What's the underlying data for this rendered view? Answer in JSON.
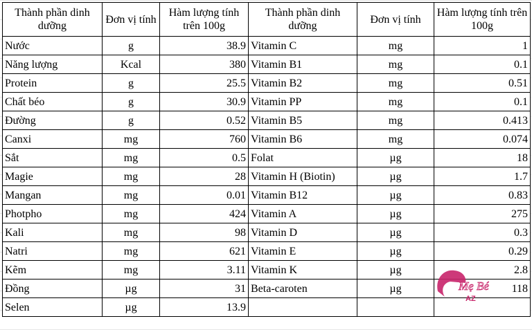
{
  "headers": [
    "Thành phần dinh dưỡng",
    "Đơn vị tính",
    "Hàm lượng tính trên 100g",
    "Thành phần dinh dưỡng",
    "Đơn vị tính",
    "Hàm lượng tính trên 100g"
  ],
  "rows": [
    [
      [
        "Nước",
        "g",
        "38.9"
      ],
      [
        "Vitamin C",
        "mg",
        "1"
      ]
    ],
    [
      [
        "Năng lượng",
        "Kcal",
        "380"
      ],
      [
        "Vitamin B1",
        "mg",
        "0.1"
      ]
    ],
    [
      [
        "Protein",
        "g",
        "25.5"
      ],
      [
        "Vitamin B2",
        "mg",
        "0.51"
      ]
    ],
    [
      [
        "Chất béo",
        "g",
        "30.9"
      ],
      [
        "Vitamin PP",
        "mg",
        "0.1"
      ]
    ],
    [
      [
        "Đường",
        "g",
        "0.52"
      ],
      [
        "Vitamin B5",
        "mg",
        "0.413"
      ]
    ],
    [
      [
        "Canxi",
        "mg",
        "760"
      ],
      [
        "Vitamin B6",
        "mg",
        "0.074"
      ]
    ],
    [
      [
        "Sắt",
        "mg",
        "0.5"
      ],
      [
        "Folat",
        "µg",
        "18"
      ]
    ],
    [
      [
        "Magie",
        "mg",
        "28"
      ],
      [
        "Vitamin H (Biotin)",
        "µg",
        "1.7"
      ]
    ],
    [
      [
        "Mangan",
        "mg",
        "0.01"
      ],
      [
        "Vitamin B12",
        "µg",
        "0.83"
      ]
    ],
    [
      [
        "Photpho",
        "mg",
        "424"
      ],
      [
        "Vitamin A",
        "µg",
        "275"
      ]
    ],
    [
      [
        "Kali",
        "mg",
        "98"
      ],
      [
        "Vitamin D",
        "µg",
        "0.3"
      ]
    ],
    [
      [
        "Natri",
        "mg",
        "621"
      ],
      [
        "Vitamin E",
        "µg",
        "0.29"
      ]
    ],
    [
      [
        "Kẽm",
        "mg",
        "3.11"
      ],
      [
        "Vitamin K",
        "µg",
        "2.8"
      ]
    ],
    [
      [
        "Đồng",
        "µg",
        "31"
      ],
      [
        "Beta-caroten",
        "µg",
        "118"
      ]
    ],
    [
      [
        "Selen",
        "µg",
        "13.9"
      ],
      [
        "",
        "",
        ""
      ]
    ]
  ],
  "watermark": {
    "text": "Mẹ Bé AZ",
    "color": "#c8246a"
  }
}
